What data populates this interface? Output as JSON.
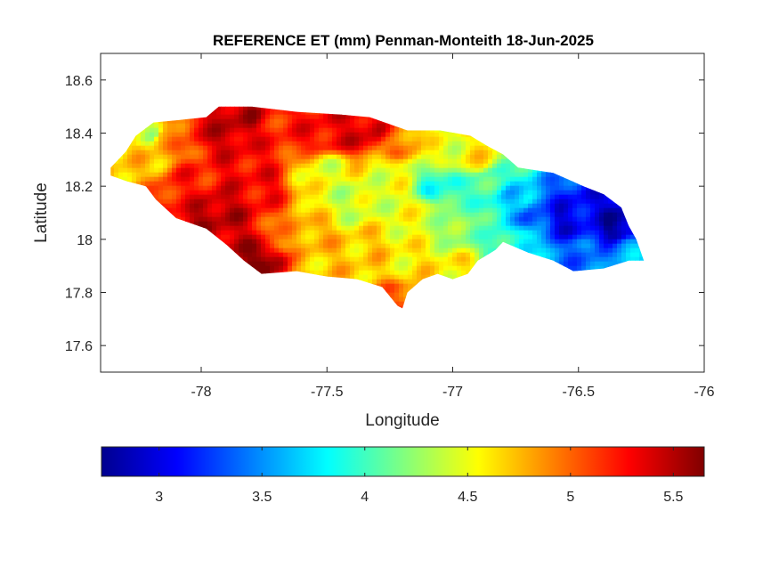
{
  "chart_data": {
    "type": "heatmap",
    "title": "REFERENCE ET (mm) Penman-Monteith 18-Jun-2025",
    "xlabel": "Longitude",
    "ylabel": "Latitude",
    "xlim": [
      -78.4,
      -76.0
    ],
    "ylim": [
      17.5,
      18.7
    ],
    "xticks": [
      -78,
      -77.5,
      -77,
      -76.5,
      -76
    ],
    "yticks": [
      17.6,
      17.8,
      18.0,
      18.2,
      18.4,
      18.6
    ],
    "xtick_labels": [
      "-78",
      "-77.5",
      "-77",
      "-76.5",
      "-76"
    ],
    "ytick_labels": [
      "17.6",
      "17.8",
      "18",
      "18.2",
      "18.4",
      "18.6"
    ],
    "grid": false,
    "colormap": "jet",
    "colorbar": {
      "location": "bottom",
      "limits": [
        2.72,
        5.65
      ],
      "ticks": [
        3,
        3.5,
        4,
        4.5,
        5,
        5.5
      ],
      "tick_labels": [
        "3",
        "3.5",
        "4",
        "4.5",
        "5",
        "5.5"
      ]
    },
    "region_outline": [
      [
        -78.36,
        18.27
      ],
      [
        -78.3,
        18.33
      ],
      [
        -78.26,
        18.39
      ],
      [
        -78.19,
        18.44
      ],
      [
        -78.08,
        18.45
      ],
      [
        -77.98,
        18.46
      ],
      [
        -77.93,
        18.5
      ],
      [
        -77.8,
        18.5
      ],
      [
        -77.62,
        18.48
      ],
      [
        -77.45,
        18.47
      ],
      [
        -77.33,
        18.46
      ],
      [
        -77.18,
        18.41
      ],
      [
        -77.05,
        18.41
      ],
      [
        -76.93,
        18.39
      ],
      [
        -76.86,
        18.35
      ],
      [
        -76.8,
        18.32
      ],
      [
        -76.74,
        18.27
      ],
      [
        -76.6,
        18.25
      ],
      [
        -76.48,
        18.2
      ],
      [
        -76.4,
        18.17
      ],
      [
        -76.33,
        18.12
      ],
      [
        -76.3,
        18.05
      ],
      [
        -76.27,
        18.0
      ],
      [
        -76.24,
        17.92
      ],
      [
        -76.3,
        17.92
      ],
      [
        -76.4,
        17.89
      ],
      [
        -76.52,
        17.88
      ],
      [
        -76.6,
        17.92
      ],
      [
        -76.7,
        17.95
      ],
      [
        -76.8,
        17.99
      ],
      [
        -76.83,
        17.96
      ],
      [
        -76.9,
        17.92
      ],
      [
        -76.94,
        17.87
      ],
      [
        -77.0,
        17.85
      ],
      [
        -77.06,
        17.87
      ],
      [
        -77.12,
        17.85
      ],
      [
        -77.18,
        17.8
      ],
      [
        -77.2,
        17.74
      ],
      [
        -77.22,
        17.75
      ],
      [
        -77.28,
        17.82
      ],
      [
        -77.38,
        17.85
      ],
      [
        -77.5,
        17.86
      ],
      [
        -77.62,
        17.88
      ],
      [
        -77.76,
        17.87
      ],
      [
        -77.83,
        17.92
      ],
      [
        -77.9,
        17.98
      ],
      [
        -77.98,
        18.04
      ],
      [
        -78.1,
        18.08
      ],
      [
        -78.18,
        18.15
      ],
      [
        -78.22,
        18.2
      ],
      [
        -78.3,
        18.22
      ],
      [
        -78.36,
        18.24
      ]
    ],
    "field_anchors": [
      {
        "lon": -78.25,
        "lat": 18.3,
        "value": 4.7
      },
      {
        "lon": -78.15,
        "lat": 18.38,
        "value": 4.9
      },
      {
        "lon": -78.2,
        "lat": 18.4,
        "value": 4.4
      },
      {
        "lon": -77.95,
        "lat": 18.42,
        "value": 5.4
      },
      {
        "lon": -77.85,
        "lat": 18.45,
        "value": 5.5
      },
      {
        "lon": -77.7,
        "lat": 18.42,
        "value": 5.2
      },
      {
        "lon": -77.5,
        "lat": 18.4,
        "value": 5.3
      },
      {
        "lon": -77.35,
        "lat": 18.4,
        "value": 5.4
      },
      {
        "lon": -77.2,
        "lat": 18.36,
        "value": 4.9
      },
      {
        "lon": -77.05,
        "lat": 18.35,
        "value": 4.5
      },
      {
        "lon": -76.9,
        "lat": 18.3,
        "value": 4.6
      },
      {
        "lon": -78.05,
        "lat": 18.2,
        "value": 5.2
      },
      {
        "lon": -77.95,
        "lat": 18.1,
        "value": 5.5
      },
      {
        "lon": -77.8,
        "lat": 18.2,
        "value": 5.3
      },
      {
        "lon": -77.75,
        "lat": 17.9,
        "value": 5.6
      },
      {
        "lon": -77.6,
        "lat": 18.0,
        "value": 4.8
      },
      {
        "lon": -77.5,
        "lat": 18.25,
        "value": 4.5
      },
      {
        "lon": -77.4,
        "lat": 18.15,
        "value": 4.4
      },
      {
        "lon": -77.35,
        "lat": 17.95,
        "value": 4.7
      },
      {
        "lon": -77.25,
        "lat": 18.25,
        "value": 4.5
      },
      {
        "lon": -77.15,
        "lat": 18.1,
        "value": 4.5
      },
      {
        "lon": -77.05,
        "lat": 18.2,
        "value": 3.9
      },
      {
        "lon": -76.95,
        "lat": 18.05,
        "value": 4.2
      },
      {
        "lon": -76.85,
        "lat": 18.22,
        "value": 4.0
      },
      {
        "lon": -76.75,
        "lat": 18.15,
        "value": 3.7
      },
      {
        "lon": -76.65,
        "lat": 18.1,
        "value": 3.3
      },
      {
        "lon": -76.55,
        "lat": 18.08,
        "value": 3.0
      },
      {
        "lon": -76.45,
        "lat": 18.05,
        "value": 3.1
      },
      {
        "lon": -76.35,
        "lat": 18.05,
        "value": 2.8
      },
      {
        "lon": -76.5,
        "lat": 17.95,
        "value": 3.4
      },
      {
        "lon": -76.3,
        "lat": 17.95,
        "value": 3.6
      },
      {
        "lon": -76.75,
        "lat": 17.98,
        "value": 3.9
      },
      {
        "lon": -77.0,
        "lat": 17.88,
        "value": 4.6
      },
      {
        "lon": -77.2,
        "lat": 17.78,
        "value": 5.0
      },
      {
        "lon": -77.2,
        "lat": 17.9,
        "value": 4.6
      },
      {
        "lon": -77.55,
        "lat": 17.9,
        "value": 4.7
      }
    ]
  }
}
